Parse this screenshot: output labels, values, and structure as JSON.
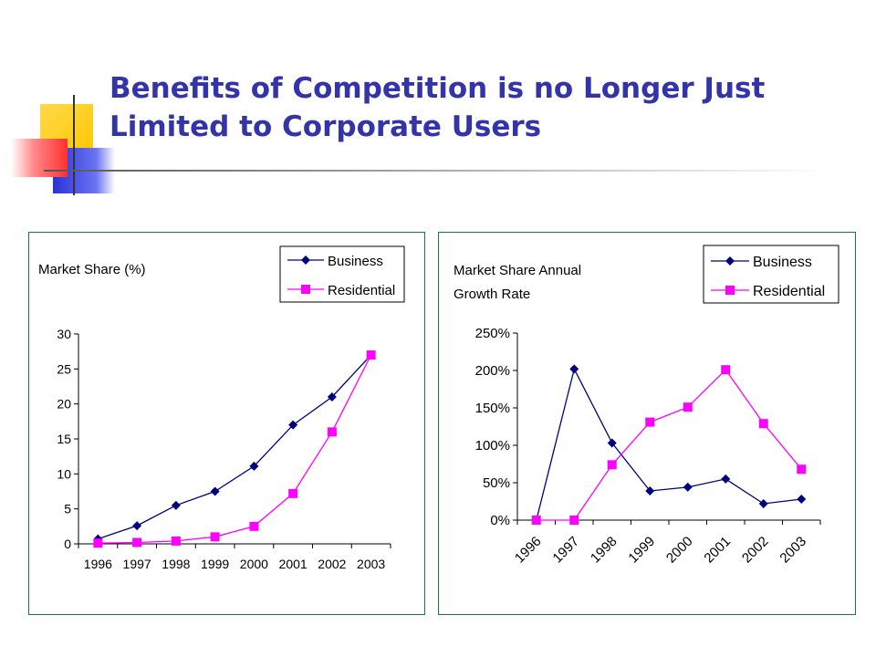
{
  "slide": {
    "title_line1": "Benefits of Competition is no Longer Just",
    "title_line2": "Limited to Corporate Users"
  },
  "colors": {
    "title": "#3333aa",
    "business": "#000080",
    "residential": "#ff00ff",
    "panel_border": "#1a7a3a"
  },
  "chart_data": [
    {
      "type": "line",
      "title": "Market Share (%)",
      "categories": [
        "1996",
        "1997",
        "1998",
        "1999",
        "2000",
        "2001",
        "2002",
        "2003"
      ],
      "series": [
        {
          "name": "Business",
          "values": [
            0.7,
            2.6,
            5.5,
            7.5,
            11.1,
            17,
            21,
            27
          ]
        },
        {
          "name": "Residential",
          "values": [
            0.1,
            0.2,
            0.4,
            1,
            2.5,
            7.2,
            16,
            27
          ]
        }
      ],
      "ylim": [
        0,
        30
      ],
      "yticks": [
        0,
        5,
        10,
        15,
        20,
        25,
        30
      ],
      "ytick_labels": [
        "0",
        "5",
        "10",
        "15",
        "20",
        "25",
        "30"
      ],
      "legend": "top-right",
      "grid": false
    },
    {
      "type": "line",
      "title": "Market Share Annual Growth Rate",
      "title_lines": [
        "Market Share Annual",
        "Growth Rate"
      ],
      "categories": [
        "1996",
        "1997",
        "1998",
        "1999",
        "2000",
        "2001",
        "2002",
        "2003"
      ],
      "series": [
        {
          "name": "Business",
          "values": [
            0,
            202,
            103,
            39,
            44,
            55,
            22,
            28
          ]
        },
        {
          "name": "Residential",
          "values": [
            0,
            0,
            74,
            131,
            151,
            201,
            129,
            68
          ]
        }
      ],
      "ylim": [
        0,
        250
      ],
      "yticks": [
        0,
        50,
        100,
        150,
        200,
        250
      ],
      "ytick_labels": [
        "0%",
        "50%",
        "100%",
        "150%",
        "200%",
        "250%"
      ],
      "legend": "top-right",
      "grid": false
    }
  ]
}
